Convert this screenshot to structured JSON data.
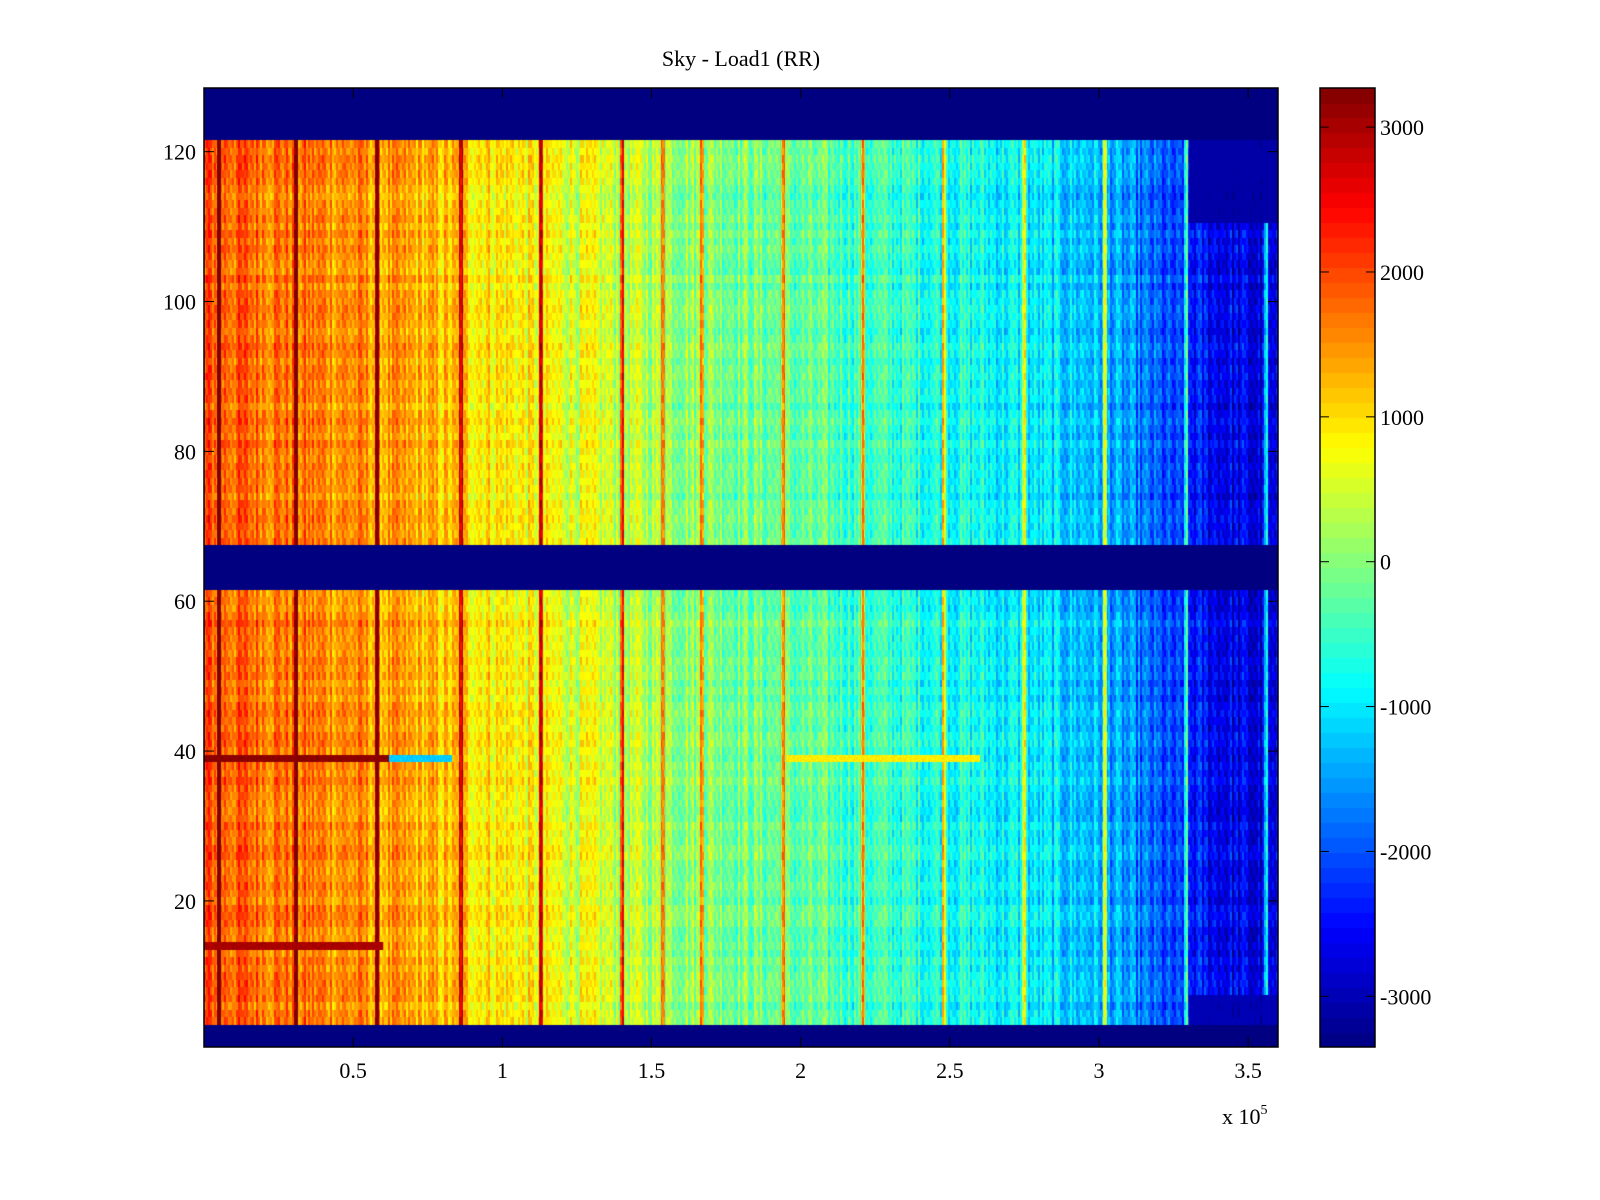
{
  "chart_data": {
    "type": "heatmap",
    "title": "Sky - Load1 (RR)",
    "xlabel": "",
    "ylabel": "",
    "x_exponent_label": {
      "prefix": "x 10",
      "exponent": "5"
    },
    "xlim": [
      0,
      3.6
    ],
    "ylim": [
      0.5,
      128.5
    ],
    "x_ticks": [
      0.5,
      1,
      1.5,
      2,
      2.5,
      3,
      3.5
    ],
    "x_tick_labels": [
      "0.5",
      "1",
      "1.5",
      "2",
      "2.5",
      "3",
      "3.5"
    ],
    "y_ticks": [
      20,
      40,
      60,
      80,
      100,
      120
    ],
    "y_tick_labels": [
      "20",
      "40",
      "60",
      "80",
      "100",
      "120"
    ],
    "colormap": "jet",
    "clim": [
      -3350,
      3270
    ],
    "colorbar": {
      "ticks": [
        3000,
        2000,
        1000,
        0,
        -1000,
        -2000,
        -3000
      ],
      "tick_labels": [
        "3000",
        "2000",
        "1000",
        "0",
        "-1000",
        "-2000",
        "-3000"
      ]
    },
    "rows": 128,
    "masked_row_bands": [
      [
        1,
        3
      ],
      [
        62,
        67
      ],
      [
        122,
        128
      ]
    ],
    "masked_value": -3350,
    "trend": {
      "description_points_x": [
        0,
        0.5,
        1,
        1.5,
        2,
        2.5,
        3,
        3.3,
        3.6
      ],
      "mean_value": [
        1900,
        1500,
        900,
        250,
        -300,
        -700,
        -1300,
        -2400,
        -2900
      ]
    },
    "vertical_stripes_x": [
      0.05,
      0.31,
      0.58,
      0.86,
      1.13,
      1.4,
      1.54,
      1.67,
      1.94,
      2.21,
      2.48,
      2.75,
      3.02,
      3.29,
      3.56
    ],
    "horizontal_anomalies": [
      {
        "row": 39,
        "x_range": [
          0,
          0.62
        ],
        "value": 3200
      },
      {
        "row": 39,
        "x_range": [
          0.62,
          0.83
        ],
        "value": -1200
      },
      {
        "row": 39,
        "x_range": [
          1.95,
          2.6
        ],
        "value": 900
      },
      {
        "row": 14,
        "x_range": [
          0,
          0.6
        ],
        "value": 3000
      }
    ]
  }
}
